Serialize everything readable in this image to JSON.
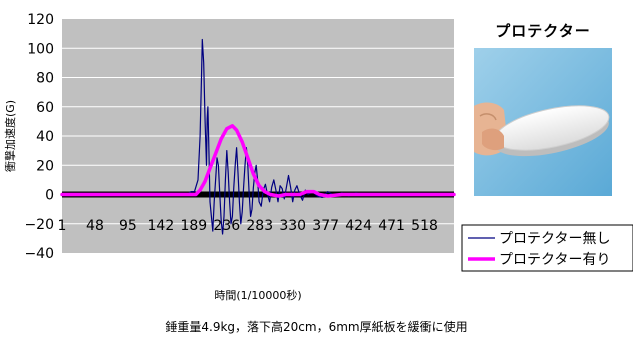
{
  "photo": {
    "title": "プロテクター"
  },
  "caption": "錘重量4.9kg，落下高20cm，6mm厚紙板を緩衝に使用",
  "chart_data": {
    "type": "line",
    "title": "",
    "xlabel": "時間(1/10000秒)",
    "ylabel": "衝撃加速度(G)",
    "ylim": [
      -40,
      120
    ],
    "y_ticks": [
      -40,
      -20,
      0,
      20,
      40,
      60,
      80,
      100,
      120
    ],
    "xlim": [
      1,
      560
    ],
    "x_tick_labels": [
      "1",
      "48",
      "95",
      "142",
      "189",
      "236",
      "283",
      "330",
      "377",
      "424",
      "471",
      "518"
    ],
    "x_tick_values": [
      1,
      48,
      95,
      142,
      189,
      236,
      283,
      330,
      377,
      424,
      471,
      518
    ],
    "grid": true,
    "legend_position": "right",
    "colors": {
      "plot_bg": "#c0c0c0",
      "gridline": "#ffffff",
      "baseline": "#000000"
    },
    "series": [
      {
        "name": "プロテクター無し",
        "color": "#000080",
        "points": [
          [
            1,
            0
          ],
          [
            170,
            0
          ],
          [
            180,
            0
          ],
          [
            185,
            2
          ],
          [
            190,
            2
          ],
          [
            195,
            10
          ],
          [
            198,
            40
          ],
          [
            200,
            80
          ],
          [
            201,
            106
          ],
          [
            203,
            90
          ],
          [
            205,
            50
          ],
          [
            207,
            20
          ],
          [
            208,
            52
          ],
          [
            209,
            60
          ],
          [
            210,
            40
          ],
          [
            212,
            -5
          ],
          [
            214,
            -15
          ],
          [
            216,
            -25
          ],
          [
            218,
            -5
          ],
          [
            220,
            10
          ],
          [
            222,
            25
          ],
          [
            224,
            20
          ],
          [
            226,
            0
          ],
          [
            228,
            -18
          ],
          [
            230,
            -27
          ],
          [
            232,
            -15
          ],
          [
            234,
            10
          ],
          [
            236,
            30
          ],
          [
            238,
            15
          ],
          [
            240,
            -5
          ],
          [
            242,
            -20
          ],
          [
            244,
            -15
          ],
          [
            246,
            5
          ],
          [
            248,
            20
          ],
          [
            250,
            32
          ],
          [
            252,
            15
          ],
          [
            254,
            -5
          ],
          [
            256,
            -20
          ],
          [
            258,
            -12
          ],
          [
            260,
            5
          ],
          [
            262,
            20
          ],
          [
            264,
            32
          ],
          [
            266,
            20
          ],
          [
            268,
            0
          ],
          [
            270,
            -15
          ],
          [
            272,
            -10
          ],
          [
            274,
            5
          ],
          [
            276,
            15
          ],
          [
            278,
            20
          ],
          [
            280,
            10
          ],
          [
            282,
            -5
          ],
          [
            285,
            -8
          ],
          [
            288,
            3
          ],
          [
            291,
            7
          ],
          [
            294,
            0
          ],
          [
            297,
            -5
          ],
          [
            300,
            5
          ],
          [
            303,
            10
          ],
          [
            306,
            3
          ],
          [
            309,
            -5
          ],
          [
            312,
            6
          ],
          [
            315,
            4
          ],
          [
            318,
            -3
          ],
          [
            321,
            5
          ],
          [
            324,
            13
          ],
          [
            327,
            5
          ],
          [
            330,
            -5
          ],
          [
            333,
            3
          ],
          [
            336,
            6
          ],
          [
            340,
            0
          ],
          [
            344,
            -4
          ],
          [
            348,
            3
          ],
          [
            352,
            0
          ],
          [
            358,
            2
          ],
          [
            365,
            -1
          ],
          [
            372,
            -2
          ],
          [
            380,
            2
          ],
          [
            390,
            -1
          ],
          [
            400,
            1
          ],
          [
            410,
            -1
          ],
          [
            420,
            1
          ],
          [
            430,
            0
          ],
          [
            445,
            0
          ],
          [
            460,
            0
          ],
          [
            490,
            0
          ],
          [
            520,
            0
          ],
          [
            560,
            0
          ]
        ]
      },
      {
        "name": "プロテクター有り",
        "color": "#ff00ff",
        "points": [
          [
            1,
            0
          ],
          [
            185,
            0
          ],
          [
            192,
            0
          ],
          [
            198,
            3
          ],
          [
            205,
            9
          ],
          [
            212,
            18
          ],
          [
            220,
            28
          ],
          [
            228,
            38
          ],
          [
            236,
            45
          ],
          [
            244,
            47
          ],
          [
            250,
            44
          ],
          [
            258,
            36
          ],
          [
            266,
            25
          ],
          [
            274,
            14
          ],
          [
            282,
            6
          ],
          [
            290,
            2
          ],
          [
            298,
            0
          ],
          [
            310,
            -1
          ],
          [
            320,
            0
          ],
          [
            340,
            0
          ],
          [
            350,
            2
          ],
          [
            360,
            2
          ],
          [
            368,
            0
          ],
          [
            380,
            -1
          ],
          [
            400,
            0
          ],
          [
            560,
            0
          ]
        ]
      }
    ]
  }
}
